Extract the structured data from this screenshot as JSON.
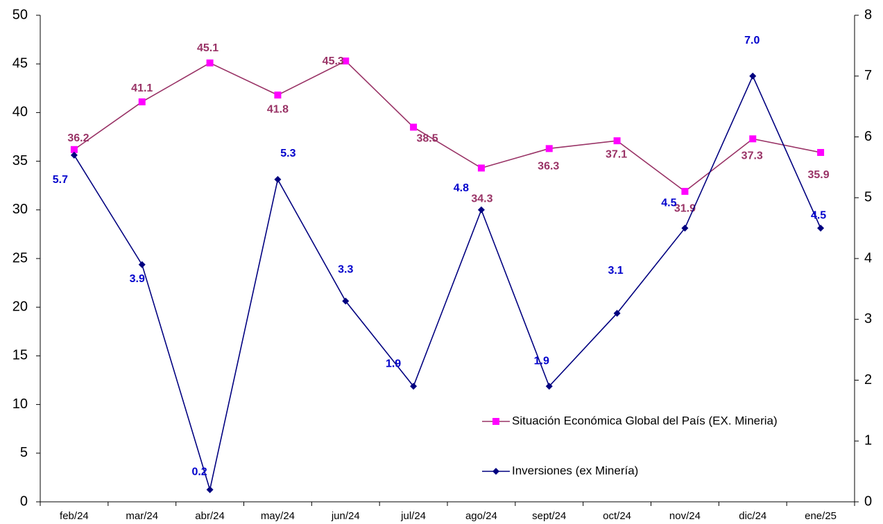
{
  "chart_data": {
    "type": "line",
    "categories": [
      "feb/24",
      "mar/24",
      "abr/24",
      "may/24",
      "jun/24",
      "jul/24",
      "ago/24",
      "sept/24",
      "oct/24",
      "nov/24",
      "dic/24",
      "ene/25"
    ],
    "series": [
      {
        "name": "Situación Económica Global del País (EX. Mineria)",
        "color": "#993366",
        "marker_color": "#ff00ff",
        "marker": "square",
        "values": [
          36.2,
          41.1,
          45.1,
          41.8,
          45.3,
          38.5,
          34.3,
          36.3,
          37.1,
          31.9,
          37.3,
          35.9
        ]
      },
      {
        "name": "Inversiones (ex Minería)",
        "color": "#000080",
        "marker_color": "#000080",
        "marker": "diamond",
        "axis": "y2",
        "label_color": "#0000cc",
        "values": [
          5.7,
          3.9,
          0.2,
          5.3,
          3.3,
          1.9,
          4.8,
          1.9,
          3.1,
          4.5,
          7.0,
          4.5
        ],
        "value_labels": [
          "5.7",
          "3.9",
          "0.2",
          "5.3",
          "3.3",
          "1.9",
          "4.8",
          "1.9",
          "3.1",
          "4.5",
          "7.0",
          "4.5"
        ]
      }
    ],
    "ylim": [
      0,
      50
    ],
    "yticks": [
      0,
      5,
      10,
      15,
      20,
      25,
      30,
      35,
      40,
      45,
      50
    ],
    "y2lim": [
      0,
      8
    ],
    "y2ticks": [
      0,
      1,
      2,
      3,
      4,
      5,
      6,
      7,
      8
    ],
    "grid": false,
    "legend": "lower right"
  }
}
